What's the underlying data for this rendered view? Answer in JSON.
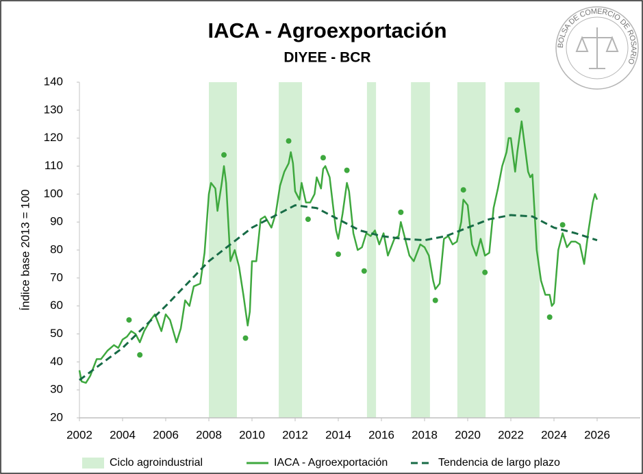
{
  "chart_data": {
    "type": "line",
    "title": "IACA - Agroexportación",
    "subtitle": "DIYEE - BCR",
    "ylabel": "Índice base 2013 = 100",
    "logo_text": "BOLSA DE COMERCIO DE ROSARIO",
    "xlim": [
      2002,
      2028
    ],
    "xticks": [
      2002,
      2004,
      2006,
      2008,
      2010,
      2012,
      2014,
      2016,
      2018,
      2020,
      2022,
      2024,
      2026
    ],
    "ylim": [
      20,
      140
    ],
    "yticks": [
      20,
      30,
      40,
      50,
      60,
      70,
      80,
      90,
      100,
      110,
      120,
      130,
      140
    ],
    "series": [
      {
        "name": "Ciclo agroindustrial",
        "kind": "band",
        "color": "#d4efd4",
        "bands": [
          [
            2008.0,
            2009.3
          ],
          [
            2011.24,
            2012.32
          ],
          [
            2015.33,
            2015.75
          ],
          [
            2017.37,
            2018.25
          ],
          [
            2019.52,
            2020.83
          ],
          [
            2021.71,
            2023.33
          ]
        ]
      },
      {
        "name": "IACA - Agroexportación",
        "kind": "line",
        "color": "#3ea83e",
        "x": [
          2002.0,
          2002.1,
          2002.3,
          2002.5,
          2002.8,
          2003.0,
          2003.3,
          2003.6,
          2003.8,
          2004.0,
          2004.2,
          2004.4,
          2004.6,
          2004.8,
          2005.0,
          2005.3,
          2005.5,
          2005.8,
          2006.0,
          2006.2,
          2006.5,
          2006.7,
          2006.9,
          2007.1,
          2007.3,
          2007.6,
          2007.8,
          2008.0,
          2008.1,
          2008.3,
          2008.4,
          2008.6,
          2008.7,
          2008.8,
          2009.0,
          2009.2,
          2009.4,
          2009.6,
          2009.8,
          2009.9,
          2010.0,
          2010.2,
          2010.4,
          2010.6,
          2010.9,
          2011.1,
          2011.3,
          2011.5,
          2011.7,
          2011.8,
          2011.9,
          2012.0,
          2012.2,
          2012.3,
          2012.5,
          2012.7,
          2012.9,
          2013.0,
          2013.2,
          2013.3,
          2013.4,
          2013.6,
          2013.8,
          2013.9,
          2014.0,
          2014.2,
          2014.4,
          2014.5,
          2014.7,
          2014.9,
          2015.1,
          2015.3,
          2015.5,
          2015.7,
          2015.9,
          2016.1,
          2016.3,
          2016.6,
          2016.8,
          2016.9,
          2017.1,
          2017.3,
          2017.5,
          2017.8,
          2018.0,
          2018.2,
          2018.4,
          2018.5,
          2018.7,
          2018.9,
          2019.1,
          2019.3,
          2019.5,
          2019.7,
          2019.8,
          2020.0,
          2020.2,
          2020.4,
          2020.6,
          2020.8,
          2021.0,
          2021.2,
          2021.4,
          2021.6,
          2021.8,
          2021.9,
          2022.0,
          2022.2,
          2022.3,
          2022.5,
          2022.6,
          2022.8,
          2022.9,
          2023.0,
          2023.2,
          2023.4,
          2023.6,
          2023.8,
          2023.9,
          2024.0,
          2024.2,
          2024.4,
          2024.6,
          2024.8,
          2025.0,
          2025.2,
          2025.4,
          2025.6,
          2025.8,
          2025.9,
          2026.0
        ],
        "values": [
          37,
          33,
          32.5,
          35,
          41,
          41,
          44,
          46,
          45,
          48,
          49,
          51,
          50,
          47,
          51,
          55,
          57,
          51,
          57,
          55,
          47,
          52,
          62,
          60,
          67,
          68,
          79,
          100,
          104,
          102,
          94,
          104,
          110,
          104,
          76,
          80,
          74,
          64,
          53,
          58,
          76,
          76,
          91,
          92,
          88,
          93,
          103,
          108,
          111,
          115,
          111,
          101,
          98,
          104,
          97,
          97,
          100,
          106,
          102,
          109,
          110,
          106,
          93,
          87,
          84,
          93,
          104,
          101,
          86,
          80,
          81,
          86,
          85,
          87,
          82,
          86,
          78,
          84,
          85,
          90,
          84,
          78,
          76,
          82,
          81,
          78,
          69,
          66,
          68,
          84,
          85,
          82,
          83,
          90,
          98,
          96,
          82,
          78,
          84,
          78,
          79,
          95,
          102,
          110,
          115,
          120,
          120,
          108,
          115,
          126,
          120,
          108,
          106,
          107,
          80,
          69,
          64,
          64,
          60,
          61,
          80,
          86,
          81,
          83,
          83,
          82,
          75,
          87,
          97,
          100,
          98
        ]
      },
      {
        "name": "Tendencia de largo plazo",
        "kind": "line",
        "dashed": true,
        "color": "#176b46",
        "x": [
          2002,
          2004,
          2006,
          2008,
          2010,
          2012,
          2013,
          2015,
          2016,
          2017,
          2018,
          2019,
          2020,
          2021,
          2022,
          2023,
          2024,
          2025,
          2026
        ],
        "values": [
          33.5,
          45,
          60,
          76,
          88,
          96,
          95,
          87,
          85,
          84,
          83.5,
          85,
          88,
          91,
          92.5,
          92,
          88,
          86,
          83.5
        ]
      }
    ],
    "points": {
      "color": "#3ea83e",
      "x": [
        2004.3,
        2004.8,
        2008.7,
        2009.7,
        2011.7,
        2012.6,
        2013.3,
        2014.0,
        2014.4,
        2015.2,
        2016.9,
        2018.5,
        2019.8,
        2020.8,
        2022.3,
        2023.8,
        2024.4
      ],
      "values": [
        55,
        42.5,
        114,
        48.5,
        119,
        91,
        113,
        78.5,
        108.5,
        72.5,
        93.5,
        62,
        101.5,
        72,
        130,
        56,
        89
      ]
    }
  }
}
